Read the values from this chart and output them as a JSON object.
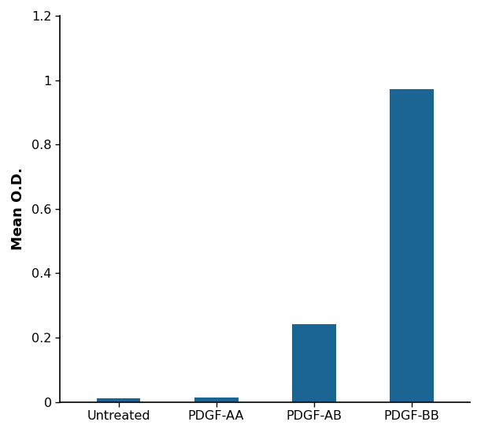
{
  "categories": [
    "Untreated",
    "PDGF-AA",
    "PDGF-AB",
    "PDGF-BB"
  ],
  "values": [
    0.012,
    0.015,
    0.243,
    0.972
  ],
  "bar_color": "#1a6593",
  "ylabel": "Mean O.D.",
  "ylim": [
    0,
    1.2
  ],
  "yticks": [
    0,
    0.2,
    0.4,
    0.6,
    0.8,
    1.0,
    1.2
  ],
  "ytick_labels": [
    "0",
    "0.2",
    "0.4",
    "0.6",
    "0.8",
    "1",
    "1.2"
  ],
  "background_color": "#ffffff",
  "bar_width": 0.45,
  "ylabel_fontsize": 13,
  "tick_fontsize": 11.5
}
